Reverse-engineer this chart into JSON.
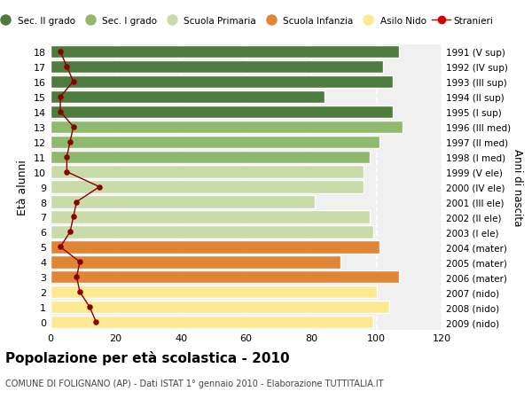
{
  "ages": [
    0,
    1,
    2,
    3,
    4,
    5,
    6,
    7,
    8,
    9,
    10,
    11,
    12,
    13,
    14,
    15,
    16,
    17,
    18
  ],
  "bar_values": [
    99,
    104,
    100,
    107,
    89,
    101,
    99,
    98,
    81,
    96,
    96,
    98,
    101,
    108,
    105,
    84,
    105,
    102,
    107
  ],
  "bar_colors": [
    "#fde992",
    "#fde992",
    "#fde992",
    "#e08535",
    "#e08535",
    "#e08535",
    "#c8dba8",
    "#c8dba8",
    "#c8dba8",
    "#c8dba8",
    "#c8dba8",
    "#8fba6e",
    "#8fba6e",
    "#8fba6e",
    "#4e7c3f",
    "#4e7c3f",
    "#4e7c3f",
    "#4e7c3f",
    "#4e7c3f"
  ],
  "stranieri_values": [
    14,
    12,
    9,
    8,
    9,
    3,
    6,
    7,
    8,
    15,
    5,
    5,
    6,
    7,
    3,
    3,
    7,
    5,
    3
  ],
  "right_labels": [
    "2009 (nido)",
    "2008 (nido)",
    "2007 (nido)",
    "2006 (mater)",
    "2005 (mater)",
    "2004 (mater)",
    "2003 (I ele)",
    "2002 (II ele)",
    "2001 (III ele)",
    "2000 (IV ele)",
    "1999 (V ele)",
    "1998 (I med)",
    "1997 (II med)",
    "1996 (III med)",
    "1995 (I sup)",
    "1994 (II sup)",
    "1993 (III sup)",
    "1992 (IV sup)",
    "1991 (V sup)"
  ],
  "legend_labels": [
    "Sec. II grado",
    "Sec. I grado",
    "Scuola Primaria",
    "Scuola Infanzia",
    "Asilo Nido",
    "Stranieri"
  ],
  "legend_colors": [
    "#4e7c3f",
    "#8fba6e",
    "#c8dba8",
    "#e08535",
    "#fde992",
    "#cc0000"
  ],
  "title": "Popolazione per età scolastica - 2010",
  "subtitle": "COMUNE DI FOLIGNANO (AP) - Dati ISTAT 1° gennaio 2010 - Elaborazione TUTTITALIA.IT",
  "ylabel": "Età alunni",
  "right_ylabel": "Anni di nascita",
  "xlim_max": 120,
  "bg_color": "#f0f0f0",
  "grid_color": "#ffffff"
}
